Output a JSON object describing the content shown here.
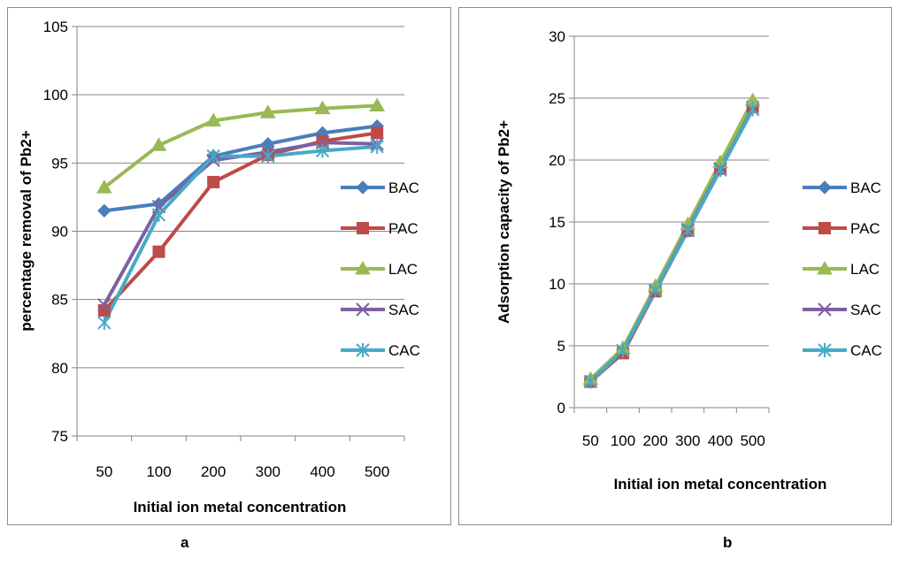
{
  "captions": {
    "a": "a",
    "b": "b"
  },
  "chart_data": [
    {
      "id": "a",
      "type": "line",
      "xlabel": "Initial ion metal concentration",
      "ylabel": "percentage removal of Pb2+",
      "categories": [
        "50",
        "100",
        "200",
        "300",
        "400",
        "500"
      ],
      "ylim": [
        75,
        105
      ],
      "yticks": [
        75,
        80,
        85,
        90,
        95,
        100,
        105
      ],
      "grid": "horizontal",
      "legend": "right",
      "series": [
        {
          "name": "BAC",
          "color": "#4a7ebb",
          "marker": "diamond",
          "values": [
            91.5,
            92.0,
            95.5,
            96.4,
            97.2,
            97.7
          ]
        },
        {
          "name": "PAC",
          "color": "#be4b48",
          "marker": "square",
          "values": [
            84.2,
            88.5,
            93.6,
            95.6,
            96.6,
            97.2
          ]
        },
        {
          "name": "LAC",
          "color": "#98b954",
          "marker": "triangle",
          "values": [
            93.2,
            96.3,
            98.1,
            98.7,
            99.0,
            99.2
          ]
        },
        {
          "name": "SAC",
          "color": "#7d60a0",
          "marker": "x",
          "values": [
            84.6,
            91.8,
            95.2,
            95.8,
            96.5,
            96.4
          ]
        },
        {
          "name": "CAC",
          "color": "#46aac5",
          "marker": "asterisk",
          "values": [
            83.3,
            91.2,
            95.5,
            95.5,
            95.9,
            96.2
          ]
        }
      ]
    },
    {
      "id": "b",
      "type": "line",
      "xlabel": "Initial ion metal concentration",
      "ylabel": "Adsorption capacity of Pb2+",
      "categories": [
        "50",
        "100",
        "200",
        "300",
        "400",
        "500"
      ],
      "ylim": [
        0,
        30
      ],
      "yticks": [
        0,
        5,
        10,
        15,
        20,
        25,
        30
      ],
      "grid": "horizontal",
      "legend": "right",
      "series": [
        {
          "name": "BAC",
          "color": "#4a7ebb",
          "marker": "diamond",
          "values": [
            2.2,
            4.6,
            9.6,
            14.5,
            19.4,
            24.4
          ]
        },
        {
          "name": "PAC",
          "color": "#be4b48",
          "marker": "square",
          "values": [
            2.1,
            4.4,
            9.4,
            14.3,
            19.3,
            24.3
          ]
        },
        {
          "name": "LAC",
          "color": "#98b954",
          "marker": "triangle",
          "values": [
            2.3,
            4.8,
            9.8,
            14.8,
            19.8,
            24.8
          ]
        },
        {
          "name": "SAC",
          "color": "#7d60a0",
          "marker": "x",
          "values": [
            2.1,
            4.6,
            9.5,
            14.4,
            19.3,
            24.1
          ]
        },
        {
          "name": "CAC",
          "color": "#46aac5",
          "marker": "asterisk",
          "values": [
            2.1,
            4.6,
            9.5,
            14.3,
            19.2,
            24.1
          ]
        }
      ]
    }
  ]
}
